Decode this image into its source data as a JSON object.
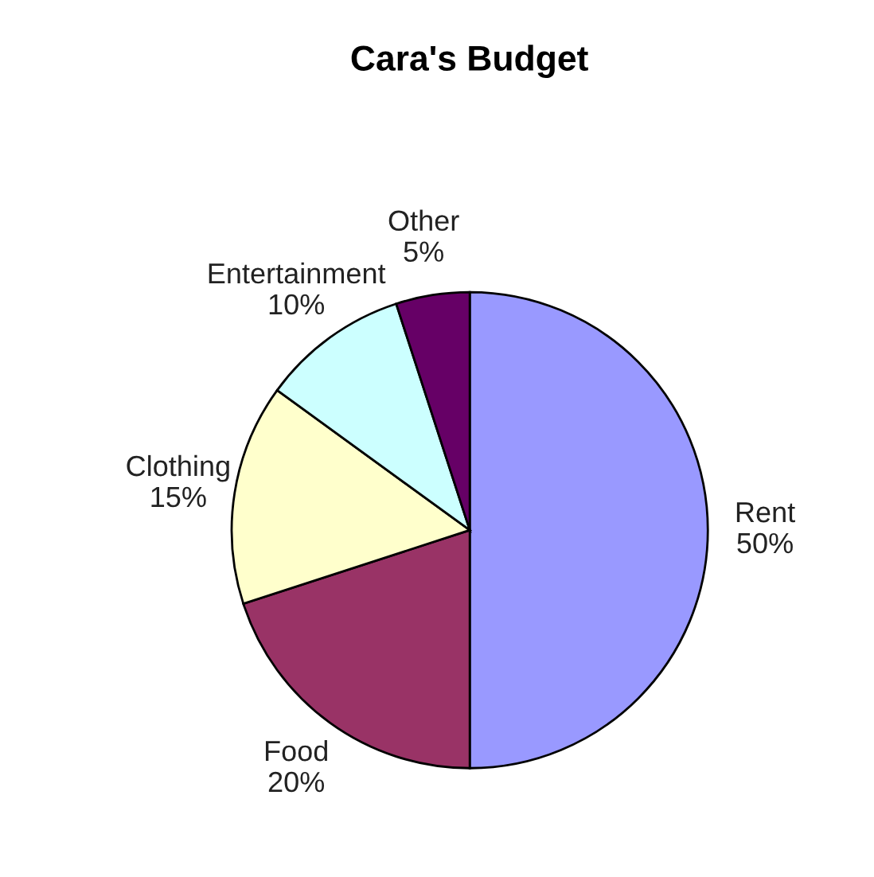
{
  "chart_data": {
    "type": "pie",
    "title": "Cara's Budget",
    "categories": [
      "Rent",
      "Food",
      "Clothing",
      "Entertainment",
      "Other"
    ],
    "values": [
      50,
      20,
      15,
      10,
      5
    ],
    "value_labels": [
      "50%",
      "20%",
      "15%",
      "10%",
      "5%"
    ],
    "colors": [
      "#9999ff",
      "#993366",
      "#ffffcc",
      "#ccffff",
      "#660066"
    ],
    "legend": false
  }
}
